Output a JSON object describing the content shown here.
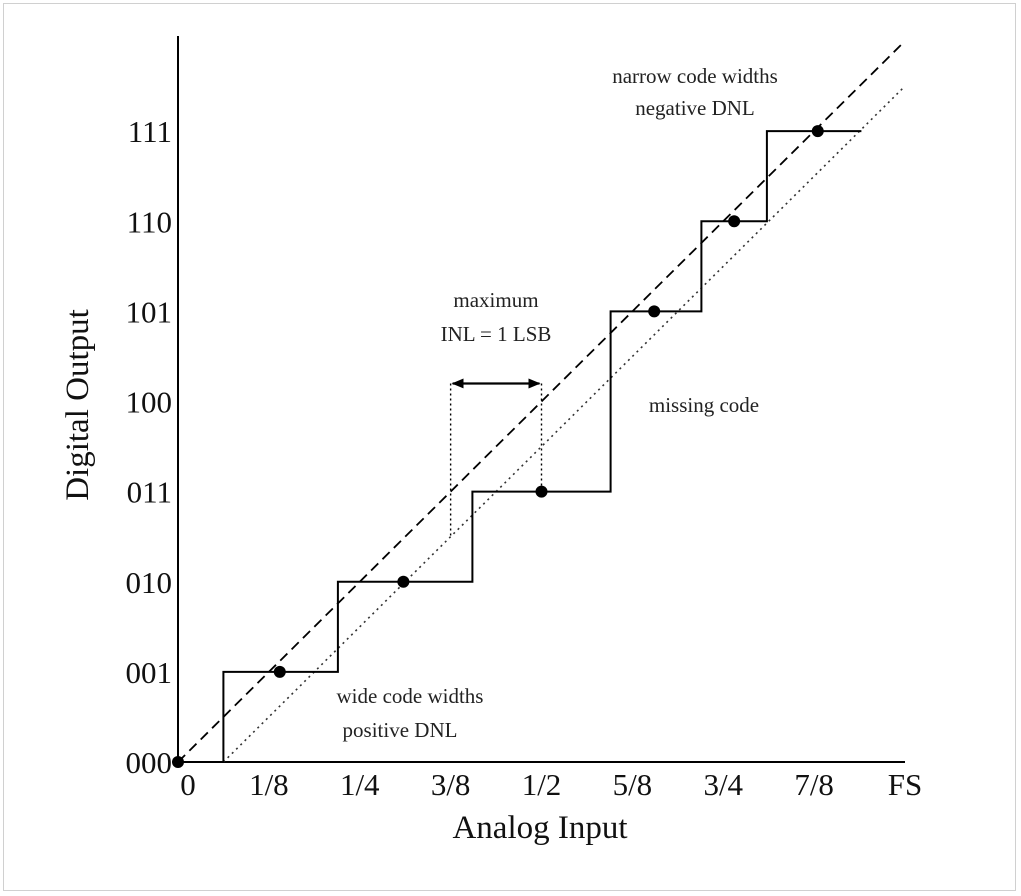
{
  "chart_data": {
    "type": "line",
    "xlabel": "Analog Input",
    "ylabel": "Digital Output",
    "x_ticks": [
      {
        "value": 0,
        "label": "0"
      },
      {
        "value": 0.125,
        "label": "1/8"
      },
      {
        "value": 0.25,
        "label": "1/4"
      },
      {
        "value": 0.375,
        "label": "3/8"
      },
      {
        "value": 0.5,
        "label": "1/2"
      },
      {
        "value": 0.625,
        "label": "5/8"
      },
      {
        "value": 0.75,
        "label": "3/4"
      },
      {
        "value": 0.875,
        "label": "7/8"
      },
      {
        "value": 1.0,
        "label": "FS"
      }
    ],
    "y_ticks": [
      {
        "value": 0,
        "label": "000"
      },
      {
        "value": 1,
        "label": "001"
      },
      {
        "value": 2,
        "label": "010"
      },
      {
        "value": 3,
        "label": "011"
      },
      {
        "value": 4,
        "label": "100"
      },
      {
        "value": 5,
        "label": "101"
      },
      {
        "value": 6,
        "label": "110"
      },
      {
        "value": 7,
        "label": "111"
      }
    ],
    "xlim": [
      0,
      1.0
    ],
    "ylim": [
      0,
      8
    ],
    "grid": false,
    "series": [
      {
        "style": "solid",
        "points": [
          [
            0,
            0
          ],
          [
            0.0625,
            0
          ],
          [
            0.0625,
            1
          ],
          [
            0.22,
            1
          ],
          [
            0.22,
            2
          ],
          [
            0.405,
            2
          ],
          [
            0.405,
            3
          ],
          [
            0.595,
            3
          ],
          [
            0.595,
            5
          ],
          [
            0.72,
            5
          ],
          [
            0.72,
            6
          ],
          [
            0.81,
            6
          ],
          [
            0.81,
            7
          ],
          [
            0.94,
            7
          ]
        ]
      },
      {
        "style": "dashed",
        "points": [
          [
            0,
            0
          ],
          [
            1.0,
            8
          ]
        ]
      },
      {
        "style": "dotted",
        "points": [
          [
            0.0625,
            0
          ],
          [
            1.0,
            7.5
          ]
        ]
      }
    ],
    "markers": [
      [
        0,
        0
      ],
      [
        0.14,
        1
      ],
      [
        0.31,
        2
      ],
      [
        0.5,
        3
      ],
      [
        0.655,
        5
      ],
      [
        0.765,
        6
      ],
      [
        0.88,
        7
      ]
    ],
    "inl_bracket": {
      "x_from": 0.375,
      "x_to": 0.5,
      "y": 4.2
    },
    "annotations": [
      {
        "lines": [
          "narrow code widths",
          "negative DNL"
        ]
      },
      {
        "lines": [
          "maximum",
          "INL = 1 LSB"
        ]
      },
      {
        "lines": [
          "missing code"
        ]
      },
      {
        "lines": [
          "wide code widths",
          "positive DNL"
        ]
      }
    ]
  }
}
